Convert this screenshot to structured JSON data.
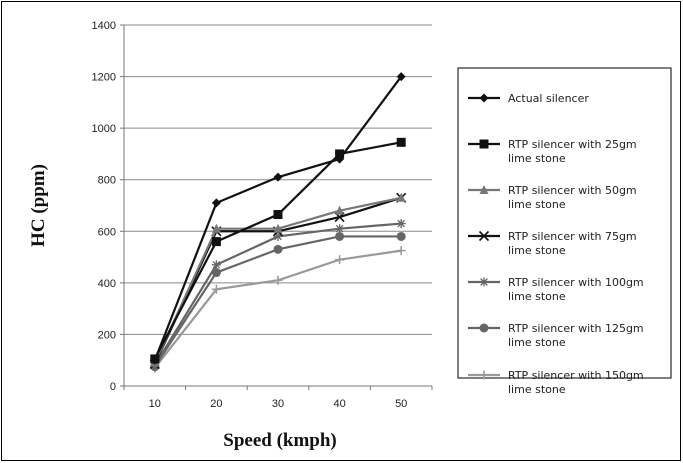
{
  "chart_data": {
    "type": "line",
    "title": "",
    "xlabel": "Speed (kmph)",
    "ylabel": "HC (ppm)",
    "x": [
      10,
      20,
      30,
      40,
      50
    ],
    "xlim": [
      5,
      55
    ],
    "ylim": [
      0,
      1400
    ],
    "yticks": [
      0,
      200,
      400,
      600,
      800,
      1000,
      1200,
      1400
    ],
    "grid": true,
    "legend_position": "right",
    "series": [
      {
        "name": "Actual silencer",
        "label_lines": [
          "Actual silencer"
        ],
        "values": [
          100,
          710,
          810,
          880,
          1200
        ],
        "color": "#111111",
        "marker": "diamond"
      },
      {
        "name": "RTP silencer with 25gm lime stone",
        "label_lines": [
          "RTP silencer with 25gm",
          "lime stone"
        ],
        "values": [
          105,
          560,
          665,
          900,
          945
        ],
        "color": "#111111",
        "marker": "square"
      },
      {
        "name": "RTP silencer with 50gm lime stone",
        "label_lines": [
          "RTP silencer with 50gm",
          "lime stone"
        ],
        "values": [
          90,
          610,
          610,
          680,
          730
        ],
        "color": "#777777",
        "marker": "triangle"
      },
      {
        "name": "RTP silencer with 75gm lime stone",
        "label_lines": [
          "RTP silencer with 75gm",
          "lime stone"
        ],
        "values": [
          85,
          600,
          600,
          655,
          730
        ],
        "color": "#111111",
        "marker": "x"
      },
      {
        "name": "RTP silencer with 100gm lime stone",
        "label_lines": [
          "RTP silencer with 100gm",
          "lime stone"
        ],
        "values": [
          80,
          470,
          580,
          610,
          630
        ],
        "color": "#666666",
        "marker": "star"
      },
      {
        "name": "RTP silencer with 125gm lime stone",
        "label_lines": [
          "RTP silencer with 125gm",
          "lime stone"
        ],
        "values": [
          75,
          440,
          530,
          580,
          580
        ],
        "color": "#666666",
        "marker": "circle"
      },
      {
        "name": "RTP silencer with 150gm lime stone",
        "label_lines": [
          "RTP silencer with 150gm",
          "lime stone"
        ],
        "values": [
          70,
          375,
          410,
          490,
          525
        ],
        "color": "#999999",
        "marker": "plus"
      }
    ]
  }
}
